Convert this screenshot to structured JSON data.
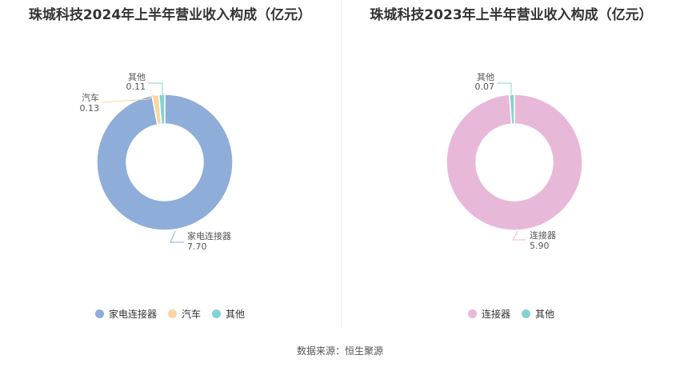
{
  "chart_data": [
    {
      "type": "pie",
      "title": "珠城科技2024年上半年营业收入构成（亿元）",
      "categories": [
        "家电连接器",
        "汽车",
        "其他"
      ],
      "values": [
        7.7,
        0.13,
        0.11
      ],
      "value_labels": [
        "7.70",
        "0.13",
        "0.11"
      ],
      "colors": [
        "#8eadd9",
        "#fad7a1",
        "#84d2d6"
      ],
      "legend_position": "bottom"
    },
    {
      "type": "pie",
      "title": "珠城科技2023年上半年营业收入构成（亿元）",
      "categories": [
        "连接器",
        "其他"
      ],
      "values": [
        5.9,
        0.07
      ],
      "value_labels": [
        "5.90",
        "0.07"
      ],
      "colors": [
        "#e8b8d9",
        "#84d2d6"
      ],
      "legend_position": "bottom"
    }
  ],
  "footer": {
    "source": "数据来源：恒生聚源"
  }
}
